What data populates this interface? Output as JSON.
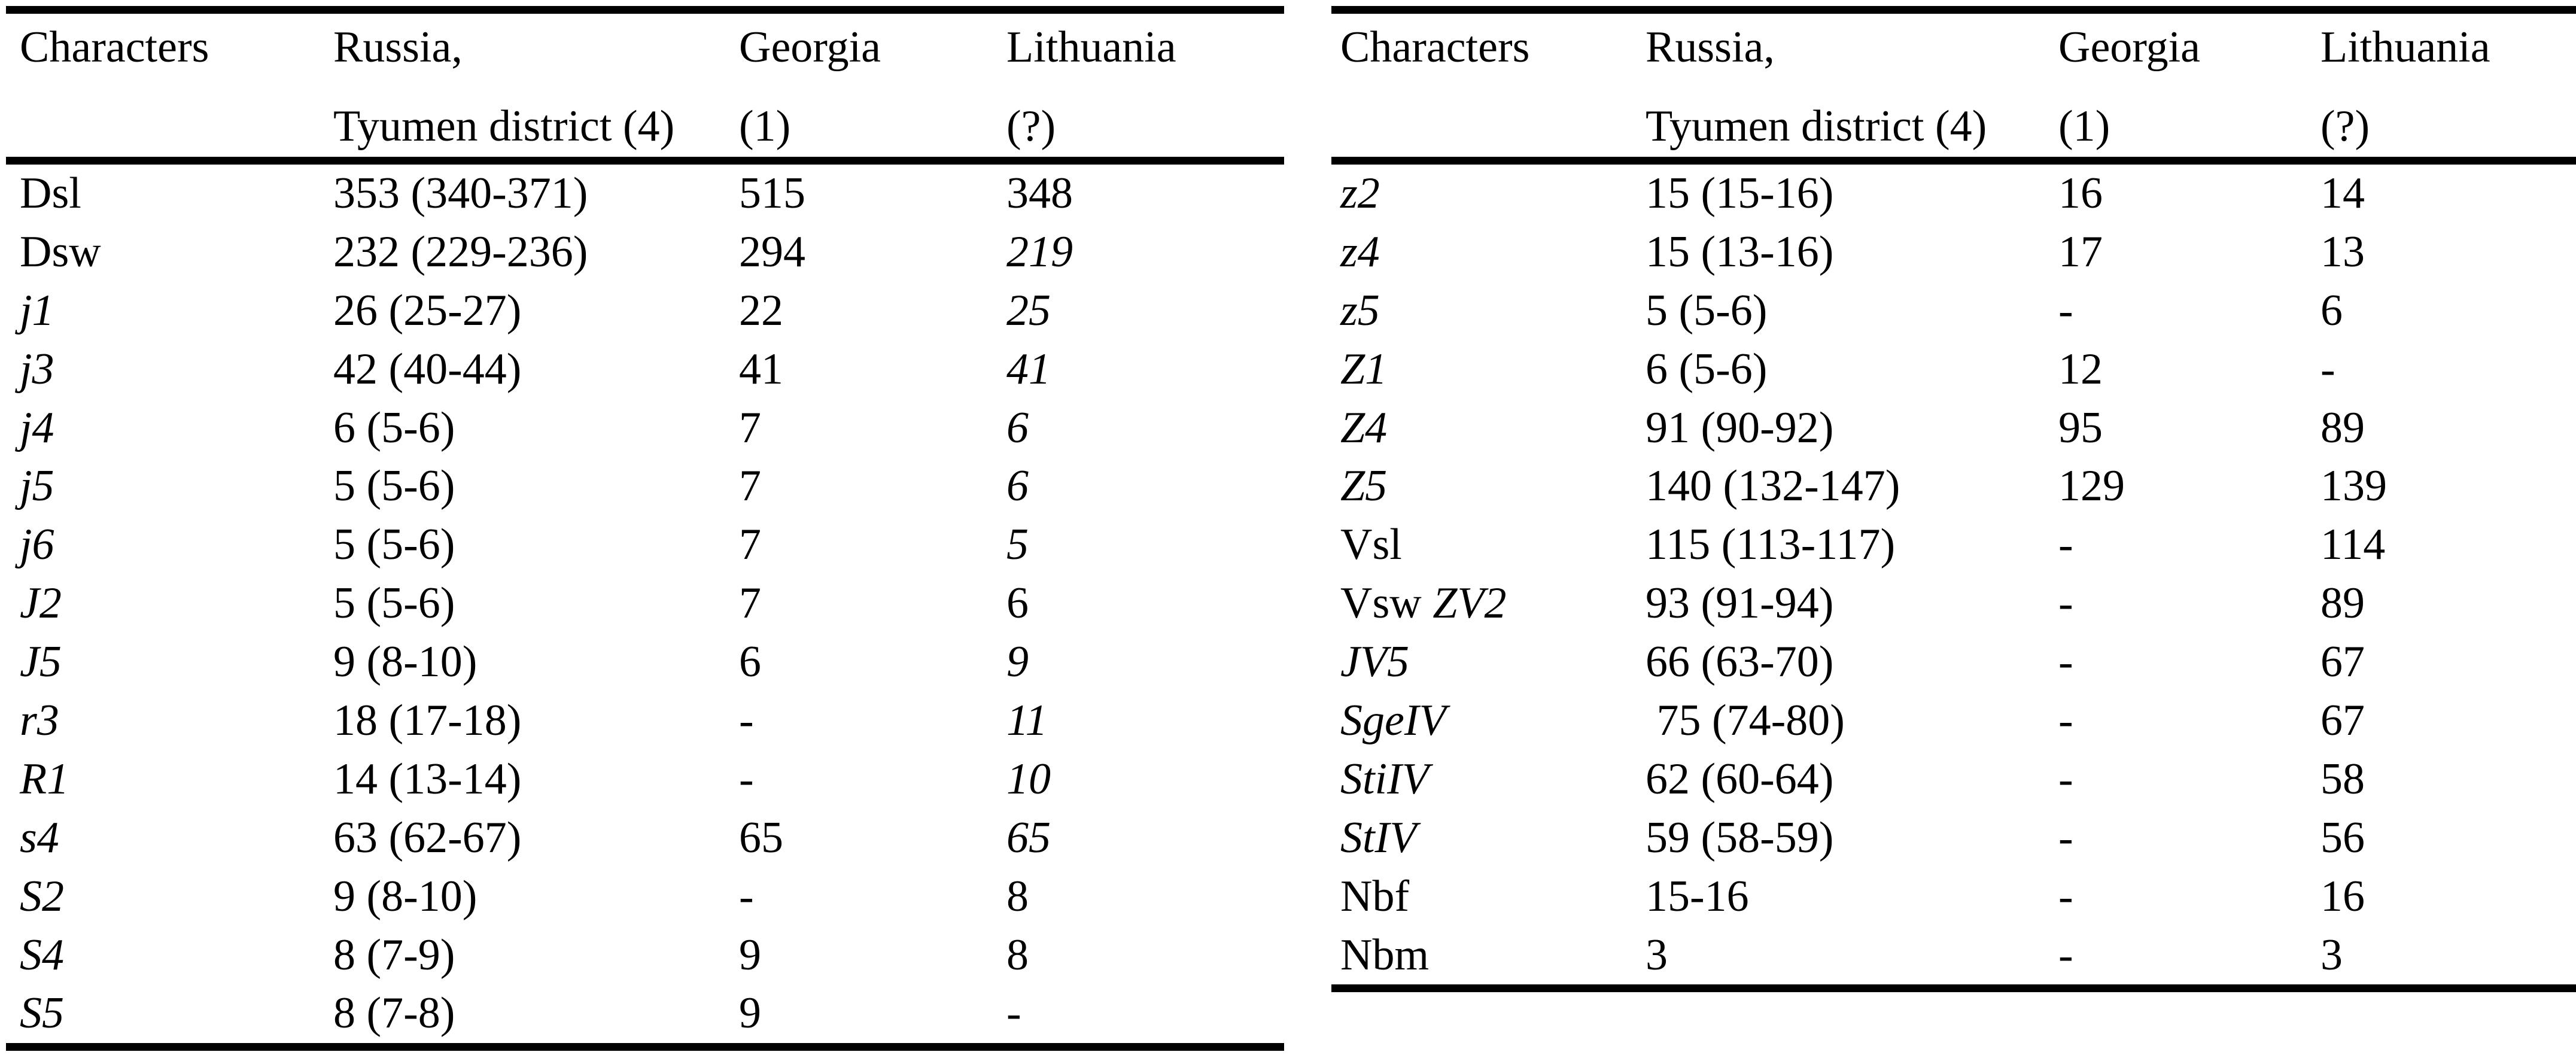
{
  "page": {
    "background_color": "#ffffff",
    "text_color": "#000000",
    "rule_color": "#000000"
  },
  "tables": [
    {
      "id": "left",
      "header": {
        "columns": [
          {
            "line1": "Characters",
            "line2": ""
          },
          {
            "line1": "Russia,",
            "line2": "Tyumen district (4)"
          },
          {
            "line1": "Georgia",
            "line2": "(1)"
          },
          {
            "line1": "Lithuania",
            "line2": "(?)"
          }
        ]
      },
      "rows": [
        {
          "character": [
            {
              "text": "Dsl",
              "italic": false
            }
          ],
          "russia": "353 (340-371)",
          "georgia": "515",
          "lithuania": "348",
          "lithuania_italic": false
        },
        {
          "character": [
            {
              "text": "Dsw",
              "italic": false
            }
          ],
          "russia": "232 (229-236)",
          "georgia": "294",
          "lithuania": "219",
          "lithuania_italic": true
        },
        {
          "character": [
            {
              "text": "j1",
              "italic": true
            }
          ],
          "russia": "26 (25-27)",
          "georgia": "22",
          "lithuania": "25",
          "lithuania_italic": true
        },
        {
          "character": [
            {
              "text": "j3",
              "italic": true
            }
          ],
          "russia": "42 (40-44)",
          "georgia": "41",
          "lithuania": "41",
          "lithuania_italic": true
        },
        {
          "character": [
            {
              "text": "j4",
              "italic": true
            }
          ],
          "russia": "6 (5-6)",
          "georgia": "7",
          "lithuania": "6",
          "lithuania_italic": true
        },
        {
          "character": [
            {
              "text": "j5",
              "italic": true
            }
          ],
          "russia": "5 (5-6)",
          "georgia": "7",
          "lithuania": "6",
          "lithuania_italic": true
        },
        {
          "character": [
            {
              "text": "j6",
              "italic": true
            }
          ],
          "russia": "5 (5-6)",
          "georgia": "7",
          "lithuania": "5",
          "lithuania_italic": true
        },
        {
          "character": [
            {
              "text": "J2",
              "italic": true
            }
          ],
          "russia": "5 (5-6)",
          "georgia": "7",
          "lithuania": "6",
          "lithuania_italic": false
        },
        {
          "character": [
            {
              "text": "J5",
              "italic": true
            }
          ],
          "russia": "9 (8-10)",
          "georgia": "6",
          "lithuania": "9",
          "lithuania_italic": true
        },
        {
          "character": [
            {
              "text": "r3",
              "italic": true
            }
          ],
          "russia": "18 (17-18)",
          "georgia": "-",
          "lithuania": "11",
          "lithuania_italic": true
        },
        {
          "character": [
            {
              "text": "R1",
              "italic": true
            }
          ],
          "russia": "14 (13-14)",
          "georgia": "-",
          "lithuania": "10",
          "lithuania_italic": true
        },
        {
          "character": [
            {
              "text": "s4",
              "italic": true
            }
          ],
          "russia": "63 (62-67)",
          "georgia": "65",
          "lithuania": "65",
          "lithuania_italic": true
        },
        {
          "character": [
            {
              "text": "S2",
              "italic": true
            }
          ],
          "russia": "9 (8-10)",
          "georgia": "-",
          "lithuania": "8",
          "lithuania_italic": false
        },
        {
          "character": [
            {
              "text": "S4",
              "italic": true
            }
          ],
          "russia": "8 (7-9)",
          "georgia": "9",
          "lithuania": "8",
          "lithuania_italic": false
        },
        {
          "character": [
            {
              "text": "S5",
              "italic": true
            }
          ],
          "russia": "8 (7-8)",
          "georgia": "9",
          "lithuania": "-",
          "lithuania_italic": false
        }
      ]
    },
    {
      "id": "right",
      "header": {
        "columns": [
          {
            "line1": "Characters",
            "line2": ""
          },
          {
            "line1": "Russia,",
            "line2": "Tyumen district (4)"
          },
          {
            "line1": "Georgia",
            "line2": "(1)"
          },
          {
            "line1": "Lithuania",
            "line2": "(?)"
          }
        ]
      },
      "rows": [
        {
          "character": [
            {
              "text": "z2",
              "italic": true
            }
          ],
          "russia": "15 (15-16)",
          "georgia": "16",
          "lithuania": "14",
          "lithuania_italic": false
        },
        {
          "character": [
            {
              "text": "z4",
              "italic": true
            }
          ],
          "russia": "15 (13-16)",
          "georgia": "17",
          "lithuania": "13",
          "lithuania_italic": false
        },
        {
          "character": [
            {
              "text": "z5",
              "italic": true
            }
          ],
          "russia": "5 (5-6)",
          "georgia": "-",
          "lithuania": "6",
          "lithuania_italic": false
        },
        {
          "character": [
            {
              "text": "Z1",
              "italic": true
            }
          ],
          "russia": "6 (5-6)",
          "georgia": "12",
          "lithuania": "-",
          "lithuania_italic": false
        },
        {
          "character": [
            {
              "text": "Z4",
              "italic": true
            }
          ],
          "russia": "91 (90-92)",
          "georgia": "95",
          "lithuania": "89",
          "lithuania_italic": false
        },
        {
          "character": [
            {
              "text": "Z5",
              "italic": true
            }
          ],
          "russia": "140 (132-147)",
          "georgia": "129",
          "lithuania": "139",
          "lithuania_italic": false
        },
        {
          "character": [
            {
              "text": "Vsl",
              "italic": false
            }
          ],
          "russia": "115 (113-117)",
          "georgia": "-",
          "lithuania": "114",
          "lithuania_italic": false
        },
        {
          "character": [
            {
              "text": "Vsw ",
              "italic": false
            },
            {
              "text": "ZV2",
              "italic": true
            }
          ],
          "russia": "93 (91-94)",
          "georgia": "-",
          "lithuania": "89",
          "lithuania_italic": false
        },
        {
          "character": [
            {
              "text": "JV5",
              "italic": true
            }
          ],
          "russia": "66 (63-70)",
          "georgia": "-",
          "lithuania": "67",
          "lithuania_italic": false
        },
        {
          "character": [
            {
              "text": "SgeIV",
              "italic": true
            }
          ],
          "russia": " 75 (74-80)",
          "georgia": "-",
          "lithuania": "67",
          "lithuania_italic": false
        },
        {
          "character": [
            {
              "text": "StiIV",
              "italic": true
            }
          ],
          "russia": "62 (60-64)",
          "georgia": "-",
          "lithuania": "58",
          "lithuania_italic": false
        },
        {
          "character": [
            {
              "text": "StIV",
              "italic": true
            }
          ],
          "russia": "59 (58-59)",
          "georgia": "-",
          "lithuania": "56",
          "lithuania_italic": false
        },
        {
          "character": [
            {
              "text": "Nbf",
              "italic": false
            }
          ],
          "russia": "15-16",
          "georgia": "-",
          "lithuania": "16",
          "lithuania_italic": false
        },
        {
          "character": [
            {
              "text": "Nbm",
              "italic": false
            }
          ],
          "russia": "3",
          "georgia": "-",
          "lithuania": "3",
          "lithuania_italic": false
        }
      ]
    }
  ]
}
